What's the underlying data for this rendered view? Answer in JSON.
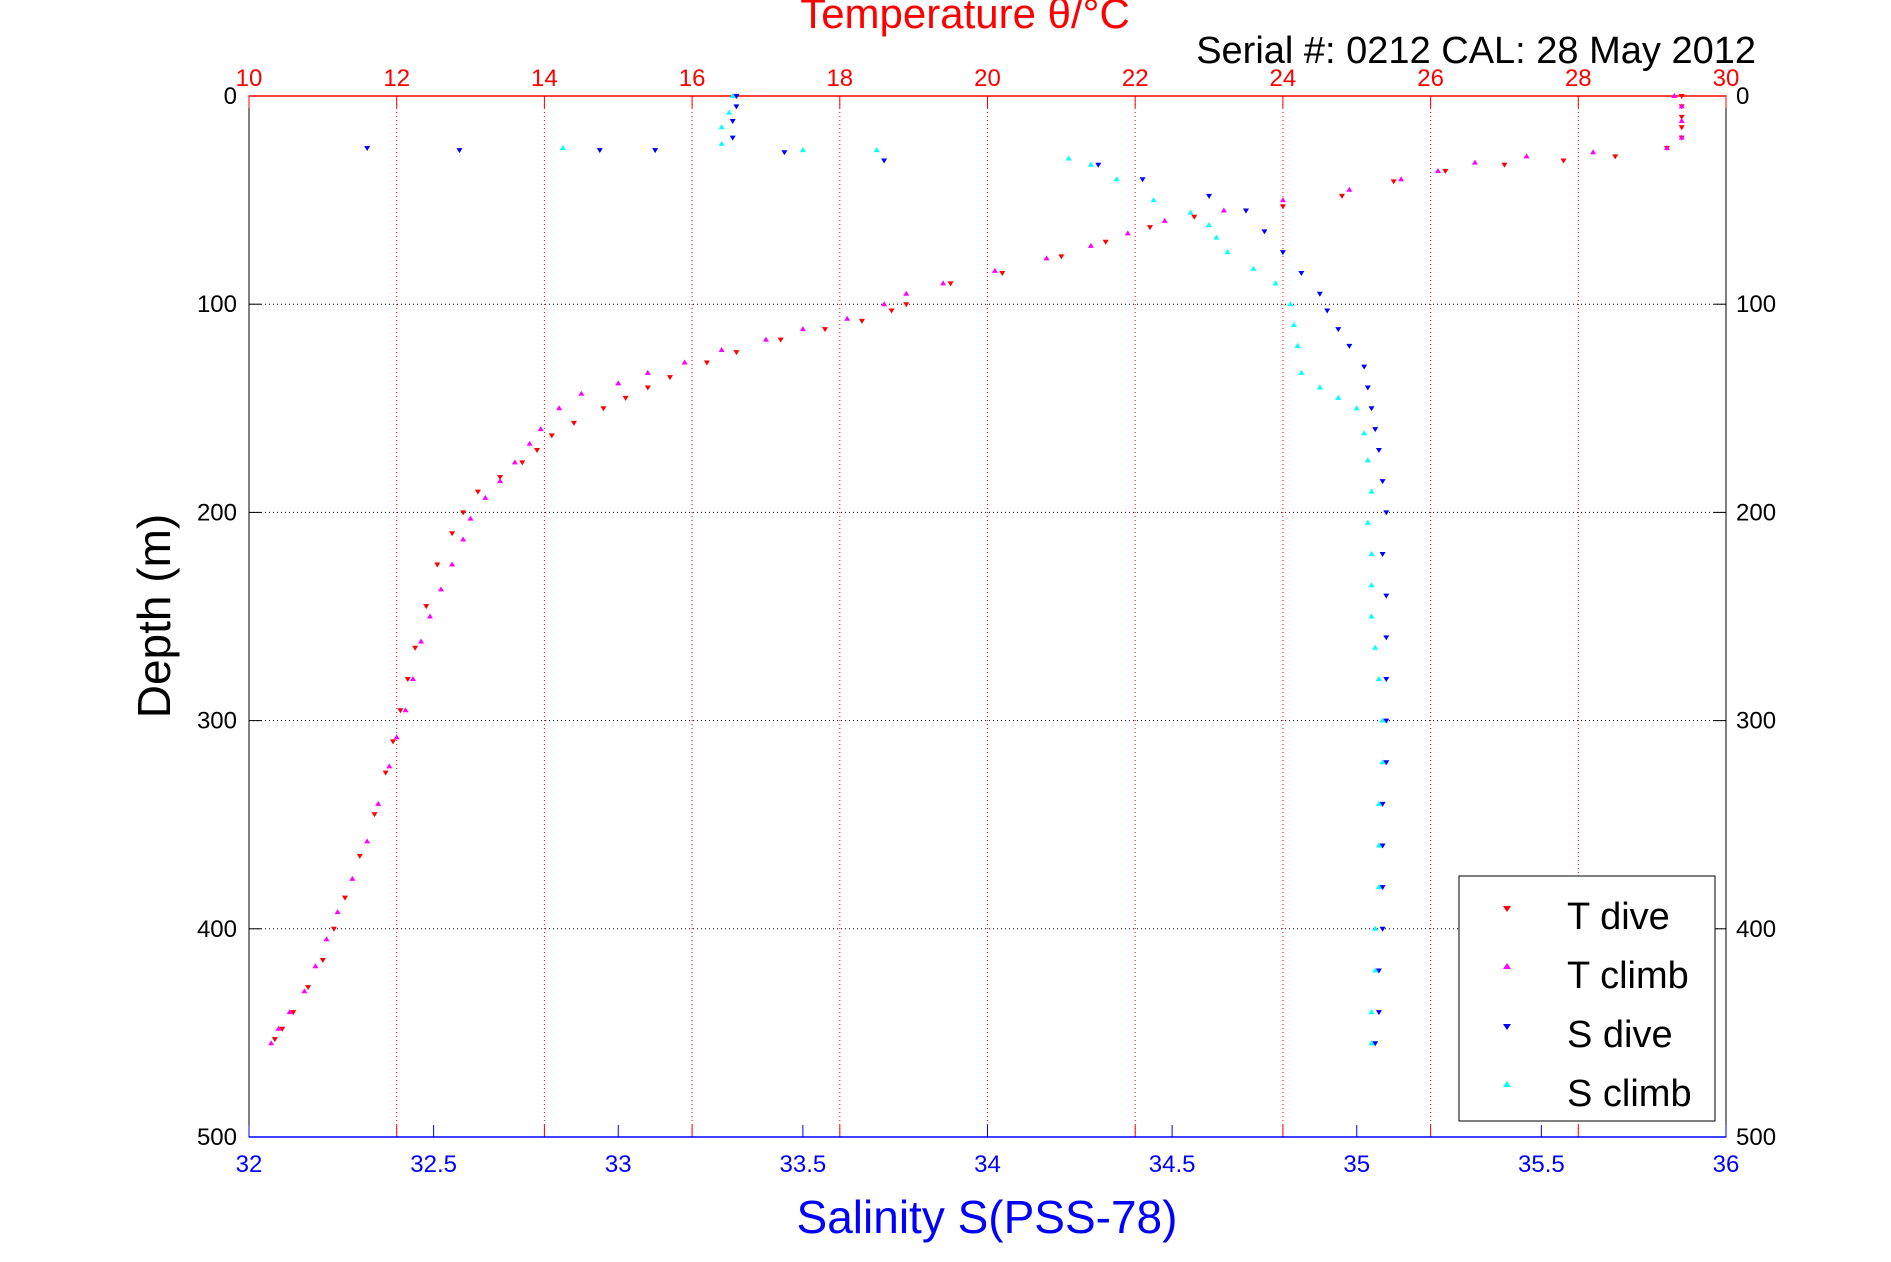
{
  "chart_data": {
    "type": "scatter",
    "title": "Temperature θ/°C",
    "annotation": "Serial #: 0212  CAL: 28 May 2012",
    "xlabel": "Salinity S(PSS-78)",
    "ylabel": "Depth (m)",
    "x_salinity": {
      "range": [
        32,
        36
      ],
      "ticks": [
        "32",
        "32.5",
        "33",
        "33.5",
        "34",
        "34.5",
        "35",
        "35.5",
        "36"
      ]
    },
    "x_temperature": {
      "range": [
        10,
        30
      ],
      "ticks": [
        "10",
        "12",
        "14",
        "16",
        "18",
        "20",
        "22",
        "24",
        "26",
        "28",
        "30"
      ]
    },
    "y_depth": {
      "range": [
        0,
        500
      ],
      "reversed": true,
      "ticks": [
        "0",
        "100",
        "200",
        "300",
        "400",
        "500"
      ]
    },
    "grid": true,
    "legend_position": "bottom-right",
    "colors": {
      "t_dive": "#ff0000",
      "t_climb": "#ff00ff",
      "s_dive": "#0000ff",
      "s_climb": "#00ffff",
      "temperature_axis": "#ff0000",
      "salinity_axis": "#0000ff"
    },
    "series": [
      {
        "name": "T dive",
        "axis": "temperature",
        "color": "#ff0000",
        "marker": "triangle-down",
        "points": [
          [
            29.4,
            0
          ],
          [
            29.4,
            5
          ],
          [
            29.4,
            10
          ],
          [
            29.4,
            15
          ],
          [
            29.4,
            20
          ],
          [
            29.2,
            25
          ],
          [
            28.5,
            29
          ],
          [
            27.8,
            31
          ],
          [
            27.0,
            33
          ],
          [
            26.2,
            36
          ],
          [
            25.5,
            41
          ],
          [
            24.8,
            48
          ],
          [
            24.0,
            53
          ],
          [
            23.5,
            55
          ],
          [
            22.8,
            58
          ],
          [
            22.2,
            63
          ],
          [
            21.6,
            70
          ],
          [
            21.0,
            77
          ],
          [
            20.2,
            85
          ],
          [
            19.5,
            90
          ],
          [
            18.9,
            100
          ],
          [
            18.7,
            103
          ],
          [
            18.3,
            108
          ],
          [
            17.8,
            112
          ],
          [
            17.2,
            117
          ],
          [
            16.6,
            123
          ],
          [
            16.2,
            128
          ],
          [
            15.7,
            135
          ],
          [
            15.4,
            140
          ],
          [
            15.1,
            145
          ],
          [
            14.8,
            150
          ],
          [
            14.4,
            157
          ],
          [
            14.1,
            163
          ],
          [
            13.9,
            170
          ],
          [
            13.7,
            176
          ],
          [
            13.4,
            183
          ],
          [
            13.1,
            190
          ],
          [
            12.9,
            200
          ],
          [
            12.75,
            210
          ],
          [
            12.55,
            225
          ],
          [
            12.4,
            245
          ],
          [
            12.25,
            265
          ],
          [
            12.15,
            280
          ],
          [
            12.05,
            295
          ],
          [
            11.95,
            310
          ],
          [
            11.85,
            325
          ],
          [
            11.7,
            345
          ],
          [
            11.5,
            365
          ],
          [
            11.3,
            385
          ],
          [
            11.15,
            400
          ],
          [
            11.0,
            415
          ],
          [
            10.8,
            428
          ],
          [
            10.6,
            440
          ],
          [
            10.45,
            448
          ],
          [
            10.35,
            453
          ]
        ]
      },
      {
        "name": "T climb",
        "axis": "temperature",
        "color": "#ff00ff",
        "marker": "triangle-up",
        "points": [
          [
            10.3,
            455
          ],
          [
            10.4,
            448
          ],
          [
            10.55,
            440
          ],
          [
            10.75,
            430
          ],
          [
            10.9,
            418
          ],
          [
            11.05,
            405
          ],
          [
            11.2,
            392
          ],
          [
            11.4,
            376
          ],
          [
            11.6,
            358
          ],
          [
            11.75,
            340
          ],
          [
            11.9,
            322
          ],
          [
            12.0,
            308
          ],
          [
            12.12,
            295
          ],
          [
            12.22,
            280
          ],
          [
            12.33,
            262
          ],
          [
            12.45,
            250
          ],
          [
            12.6,
            237
          ],
          [
            12.75,
            225
          ],
          [
            12.9,
            213
          ],
          [
            13.0,
            203
          ],
          [
            13.2,
            193
          ],
          [
            13.4,
            185
          ],
          [
            13.6,
            176
          ],
          [
            13.8,
            167
          ],
          [
            13.95,
            160
          ],
          [
            14.2,
            150
          ],
          [
            14.5,
            143
          ],
          [
            15.0,
            138
          ],
          [
            15.4,
            133
          ],
          [
            15.9,
            128
          ],
          [
            16.4,
            122
          ],
          [
            17.0,
            117
          ],
          [
            17.5,
            112
          ],
          [
            18.1,
            107
          ],
          [
            18.6,
            100
          ],
          [
            18.9,
            95
          ],
          [
            19.4,
            90
          ],
          [
            20.1,
            84
          ],
          [
            20.8,
            78
          ],
          [
            21.4,
            72
          ],
          [
            21.9,
            66
          ],
          [
            22.4,
            60
          ],
          [
            23.2,
            55
          ],
          [
            24.0,
            50
          ],
          [
            24.9,
            45
          ],
          [
            25.6,
            40
          ],
          [
            26.1,
            36
          ],
          [
            26.6,
            32
          ],
          [
            27.3,
            29
          ],
          [
            28.2,
            27
          ],
          [
            29.2,
            25
          ],
          [
            29.4,
            20
          ],
          [
            29.4,
            12
          ],
          [
            29.4,
            5
          ],
          [
            29.3,
            0
          ]
        ]
      },
      {
        "name": "S dive",
        "axis": "salinity",
        "color": "#0000ff",
        "marker": "triangle-down",
        "points": [
          [
            33.32,
            0
          ],
          [
            33.32,
            5
          ],
          [
            33.31,
            12
          ],
          [
            33.31,
            20
          ],
          [
            32.32,
            25
          ],
          [
            32.57,
            26
          ],
          [
            32.95,
            26
          ],
          [
            33.1,
            26
          ],
          [
            33.45,
            27
          ],
          [
            33.72,
            31
          ],
          [
            34.3,
            33
          ],
          [
            34.42,
            40
          ],
          [
            34.6,
            48
          ],
          [
            34.7,
            55
          ],
          [
            34.75,
            65
          ],
          [
            34.8,
            75
          ],
          [
            34.85,
            85
          ],
          [
            34.9,
            95
          ],
          [
            34.92,
            103
          ],
          [
            34.95,
            112
          ],
          [
            34.98,
            120
          ],
          [
            35.02,
            130
          ],
          [
            35.03,
            140
          ],
          [
            35.04,
            150
          ],
          [
            35.05,
            160
          ],
          [
            35.06,
            170
          ],
          [
            35.07,
            185
          ],
          [
            35.08,
            200
          ],
          [
            35.07,
            220
          ],
          [
            35.08,
            240
          ],
          [
            35.08,
            260
          ],
          [
            35.08,
            280
          ],
          [
            35.08,
            300
          ],
          [
            35.08,
            320
          ],
          [
            35.07,
            340
          ],
          [
            35.07,
            360
          ],
          [
            35.07,
            380
          ],
          [
            35.07,
            400
          ],
          [
            35.06,
            420
          ],
          [
            35.06,
            440
          ],
          [
            35.05,
            455
          ]
        ]
      },
      {
        "name": "S climb",
        "axis": "salinity",
        "color": "#00ffff",
        "marker": "triangle-up",
        "points": [
          [
            35.04,
            455
          ],
          [
            35.04,
            440
          ],
          [
            35.05,
            420
          ],
          [
            35.05,
            400
          ],
          [
            35.06,
            380
          ],
          [
            35.06,
            360
          ],
          [
            35.06,
            340
          ],
          [
            35.07,
            320
          ],
          [
            35.07,
            300
          ],
          [
            35.06,
            280
          ],
          [
            35.05,
            265
          ],
          [
            35.04,
            250
          ],
          [
            35.04,
            235
          ],
          [
            35.04,
            220
          ],
          [
            35.03,
            205
          ],
          [
            35.04,
            190
          ],
          [
            35.03,
            175
          ],
          [
            35.02,
            162
          ],
          [
            35.0,
            150
          ],
          [
            34.95,
            145
          ],
          [
            34.9,
            140
          ],
          [
            34.85,
            133
          ],
          [
            34.84,
            120
          ],
          [
            34.83,
            110
          ],
          [
            34.82,
            100
          ],
          [
            34.78,
            90
          ],
          [
            34.72,
            83
          ],
          [
            34.65,
            75
          ],
          [
            34.62,
            68
          ],
          [
            34.6,
            62
          ],
          [
            34.55,
            56
          ],
          [
            34.45,
            50
          ],
          [
            34.35,
            40
          ],
          [
            34.28,
            33
          ],
          [
            34.22,
            30
          ],
          [
            33.7,
            26
          ],
          [
            33.5,
            26
          ],
          [
            32.85,
            25
          ],
          [
            33.28,
            23
          ],
          [
            33.28,
            15
          ],
          [
            33.3,
            8
          ],
          [
            33.31,
            0
          ]
        ]
      }
    ]
  }
}
